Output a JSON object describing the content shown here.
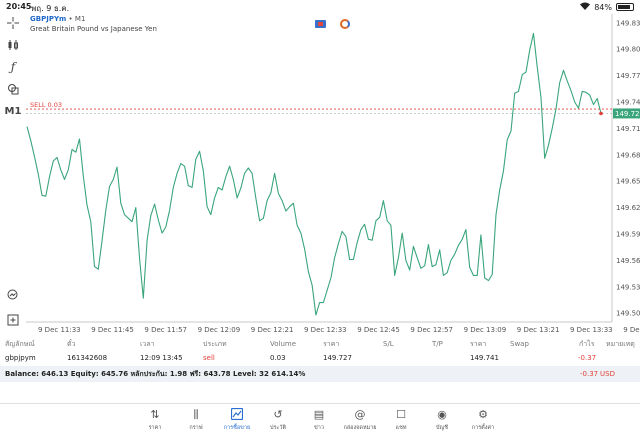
{
  "status_bar": {
    "time": "20:45",
    "date": "พฤ. 9 ธ.ค.",
    "battery": "84%",
    "battery_level": 0.84
  },
  "toolbar": {
    "crosshair_icon": "crosshair-icon",
    "indicator_icon": "candles-icon",
    "function_icon": "function-icon",
    "objects_icon": "shapes-icon",
    "timeframe": "M1",
    "zoom_icon": "zoom-icon",
    "add_icon": "add-icon"
  },
  "chart": {
    "symbol": "GBPJPYm",
    "separator": "•",
    "timeframe": "M1",
    "description": "Great Britain Pound vs Japanese Yen",
    "sell_label": "SELL 0.03",
    "current_price": "149.727",
    "line_color": "#3aa57c",
    "sell_color": "#e0413b"
  },
  "chart_data": {
    "type": "line",
    "y_ticks": [
      "149.830",
      "149.800",
      "149.770",
      "149.740",
      "149.710",
      "149.680",
      "149.650",
      "149.620",
      "149.590",
      "149.560",
      "149.530",
      "149.500"
    ],
    "x_ticks": [
      "9 Dec 11:33",
      "9 Dec 11:45",
      "9 Dec 11:57",
      "9 Dec 12:09",
      "9 Dec 12:21",
      "9 Dec 12:33",
      "9 Dec 12:45",
      "9 Dec 12:57",
      "9 Dec 13:09",
      "9 Dec 13:21",
      "9 Dec 13:33",
      "9 Dec 13:45"
    ],
    "ylim": [
      149.49,
      149.84
    ],
    "sell_price": 149.732,
    "series": [
      {
        "values": [
          149.712,
          149.696,
          149.678,
          149.658,
          149.634,
          149.633,
          149.655,
          149.673,
          149.677,
          149.663,
          149.652,
          149.663,
          149.686,
          149.683,
          149.698,
          149.656,
          149.623,
          149.604,
          149.553,
          149.55,
          149.582,
          149.617,
          149.644,
          149.652,
          149.666,
          149.625,
          149.612,
          149.608,
          149.604,
          149.62,
          149.563,
          149.517,
          149.583,
          149.611,
          149.624,
          149.606,
          149.591,
          149.598,
          149.617,
          149.643,
          149.659,
          149.67,
          149.667,
          149.645,
          149.643,
          149.675,
          149.684,
          149.662,
          149.621,
          149.612,
          149.631,
          149.643,
          149.64,
          149.655,
          149.667,
          149.652,
          149.631,
          149.642,
          149.659,
          149.665,
          149.659,
          149.631,
          149.605,
          149.608,
          149.628,
          149.637,
          149.659,
          149.636,
          149.628,
          149.616,
          149.621,
          149.625,
          149.6,
          149.591,
          149.573,
          149.547,
          149.532,
          149.498,
          149.512,
          149.512,
          149.526,
          149.54,
          149.563,
          149.579,
          149.593,
          149.587,
          149.561,
          149.561,
          149.58,
          149.595,
          149.601,
          149.584,
          149.583,
          149.605,
          149.609,
          149.628,
          149.605,
          149.6,
          149.543,
          149.563,
          149.591,
          149.56,
          149.549,
          149.576,
          149.563,
          149.551,
          149.554,
          149.578,
          149.553,
          149.555,
          149.572,
          149.543,
          149.546,
          149.56,
          149.567,
          149.577,
          149.584,
          149.595,
          149.552,
          149.543,
          149.543,
          149.589,
          149.54,
          149.537,
          149.544,
          149.612,
          149.64,
          149.662,
          149.697,
          149.707,
          149.75,
          149.752,
          149.771,
          149.774,
          149.799,
          149.818,
          149.78,
          149.745,
          149.676,
          149.691,
          149.71,
          149.732,
          149.762,
          149.776,
          149.764,
          149.753,
          149.74,
          149.733,
          149.752,
          149.751,
          149.748,
          149.737,
          149.744,
          149.727
        ]
      }
    ]
  },
  "table": {
    "headers": [
      "สัญลักษณ์",
      "ตั๋ว",
      "เวลา",
      "ประเภท",
      "Volume",
      "ราคา",
      "S/L",
      "T/P",
      "ราคา",
      "Swap",
      "กำไร",
      "หมายเหตุ"
    ],
    "row": [
      "gbpjpym",
      "161342608",
      "12:09 13:45",
      "sell",
      "0.03",
      "149.727",
      "",
      "",
      "149.741",
      "",
      "-0.37",
      ""
    ]
  },
  "balance": {
    "text": "Balance: 646.13 Equity: 645.76 หลักประกัน: 1.98 ฟรี: 643.78 Level: 32 614.14%",
    "profit": "-0.37",
    "currency": "USD"
  },
  "nav": {
    "items": [
      {
        "label": "ราคา",
        "icon": "quotes-icon"
      },
      {
        "label": "กราฟ",
        "icon": "chart-icon"
      },
      {
        "label": "การซื้อขาย",
        "icon": "trade-icon",
        "active": true
      },
      {
        "label": "ประวัติ",
        "icon": "history-icon"
      },
      {
        "label": "ข่าว",
        "icon": "news-icon"
      },
      {
        "label": "กล่องจดหมาย",
        "icon": "mailbox-icon"
      },
      {
        "label": "แชท",
        "icon": "chat-icon"
      },
      {
        "label": "บัญชี",
        "icon": "account-icon"
      },
      {
        "label": "การตั้งค่า",
        "icon": "settings-icon"
      }
    ]
  }
}
